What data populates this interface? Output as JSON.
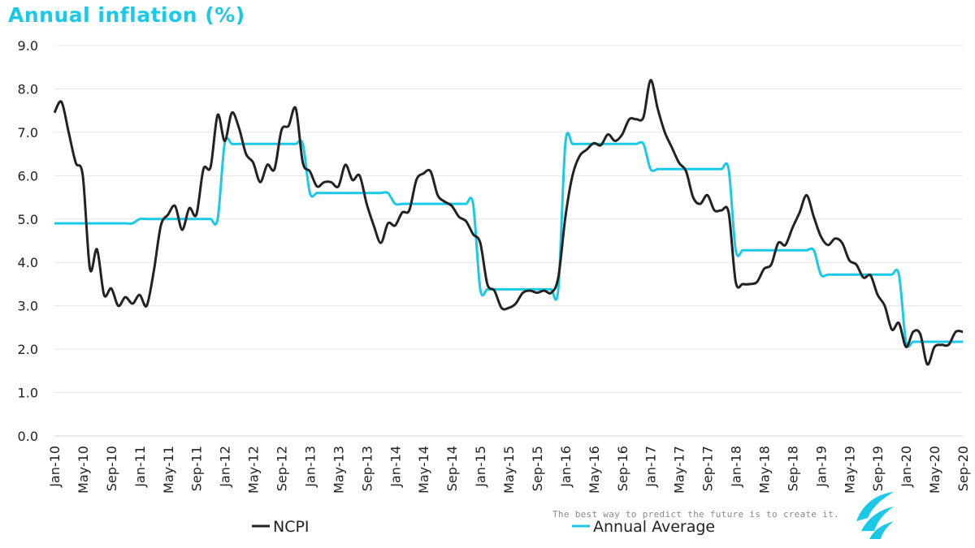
{
  "chart_data": {
    "type": "line",
    "title": "Annual inflation (%)",
    "y_ticks": [
      "0.0",
      "1.0",
      "2.0",
      "3.0",
      "4.0",
      "5.0",
      "6.0",
      "7.0",
      "8.0",
      "9.0"
    ],
    "ylim": [
      0,
      9
    ],
    "x_tick_labels": [
      "Jan-10",
      "May-10",
      "Sep-10",
      "Jan-11",
      "May-11",
      "Sep-11",
      "Jan-12",
      "May-12",
      "Sep-12",
      "Jan-13",
      "May-13",
      "Sep-13",
      "Jan-14",
      "May-14",
      "Sep-14",
      "Jan-15",
      "May-15",
      "Sep-15",
      "Jan-16",
      "May-16",
      "Sep-16",
      "Jan-17",
      "May-17",
      "Sep-17",
      "Jan-18",
      "May-18",
      "Sep-18",
      "Jan-19",
      "May-19",
      "Sep-19",
      "Jan-20",
      "May-20",
      "Sep-20"
    ],
    "x_start": "Jan-10",
    "x_end": "Sep-20",
    "grid": "horizontal",
    "legend_position": "bottom",
    "series": [
      {
        "name": "NCPI",
        "color": "#222222",
        "values": [
          7.45,
          7.7,
          7.0,
          6.3,
          6.0,
          3.85,
          4.3,
          3.25,
          3.4,
          3.0,
          3.2,
          3.05,
          3.25,
          3.0,
          3.8,
          4.85,
          5.1,
          5.3,
          4.75,
          5.25,
          5.1,
          6.15,
          6.2,
          7.4,
          6.8,
          7.45,
          7.1,
          6.5,
          6.3,
          5.85,
          6.25,
          6.15,
          7.05,
          7.15,
          7.55,
          6.3,
          6.1,
          5.75,
          5.85,
          5.85,
          5.75,
          6.25,
          5.9,
          6.0,
          5.35,
          4.85,
          4.45,
          4.9,
          4.85,
          5.15,
          5.2,
          5.9,
          6.05,
          6.1,
          5.55,
          5.4,
          5.3,
          5.05,
          4.95,
          4.65,
          4.45,
          3.5,
          3.35,
          2.95,
          2.95,
          3.05,
          3.3,
          3.35,
          3.3,
          3.35,
          3.3,
          3.65,
          5.05,
          6.0,
          6.45,
          6.6,
          6.75,
          6.7,
          6.95,
          6.8,
          6.95,
          7.3,
          7.3,
          7.35,
          8.2,
          7.55,
          7.0,
          6.65,
          6.3,
          6.1,
          5.5,
          5.35,
          5.55,
          5.2,
          5.2,
          5.15,
          3.55,
          3.5,
          3.5,
          3.55,
          3.85,
          3.95,
          4.45,
          4.4,
          4.8,
          5.15,
          5.55,
          5.05,
          4.6,
          4.4,
          4.55,
          4.45,
          4.05,
          3.95,
          3.65,
          3.7,
          3.25,
          3.0,
          2.45,
          2.6,
          2.05,
          2.4,
          2.35,
          1.65,
          2.05,
          2.1,
          2.1,
          2.4,
          2.4
        ]
      },
      {
        "name": "Annual Average",
        "color": "#1ac9e6",
        "values": [
          4.9,
          4.9,
          4.9,
          4.9,
          4.9,
          4.9,
          4.9,
          4.9,
          4.9,
          4.9,
          4.9,
          4.9,
          5.0,
          5.0,
          5.0,
          5.0,
          5.0,
          5.0,
          5.0,
          5.0,
          5.0,
          5.0,
          5.0,
          5.0,
          6.75,
          6.73,
          6.73,
          6.73,
          6.73,
          6.73,
          6.73,
          6.73,
          6.73,
          6.73,
          6.73,
          6.73,
          5.6,
          5.6,
          5.6,
          5.6,
          5.6,
          5.6,
          5.6,
          5.6,
          5.6,
          5.6,
          5.6,
          5.6,
          5.35,
          5.35,
          5.35,
          5.35,
          5.35,
          5.35,
          5.35,
          5.35,
          5.35,
          5.35,
          5.35,
          5.35,
          3.38,
          3.38,
          3.38,
          3.38,
          3.38,
          3.38,
          3.38,
          3.38,
          3.38,
          3.38,
          3.38,
          3.38,
          6.75,
          6.73,
          6.73,
          6.73,
          6.73,
          6.73,
          6.73,
          6.73,
          6.73,
          6.73,
          6.73,
          6.73,
          6.15,
          6.15,
          6.15,
          6.15,
          6.15,
          6.15,
          6.15,
          6.15,
          6.15,
          6.15,
          6.15,
          6.15,
          4.28,
          4.28,
          4.28,
          4.28,
          4.28,
          4.28,
          4.28,
          4.28,
          4.28,
          4.28,
          4.28,
          4.28,
          3.72,
          3.72,
          3.72,
          3.72,
          3.72,
          3.72,
          3.72,
          3.72,
          3.72,
          3.72,
          3.72,
          3.72,
          2.17,
          2.17,
          2.17,
          2.17,
          2.17,
          2.17,
          2.17,
          2.17,
          2.17
        ]
      }
    ]
  },
  "tagline": "The best way to predict the future is to create it."
}
